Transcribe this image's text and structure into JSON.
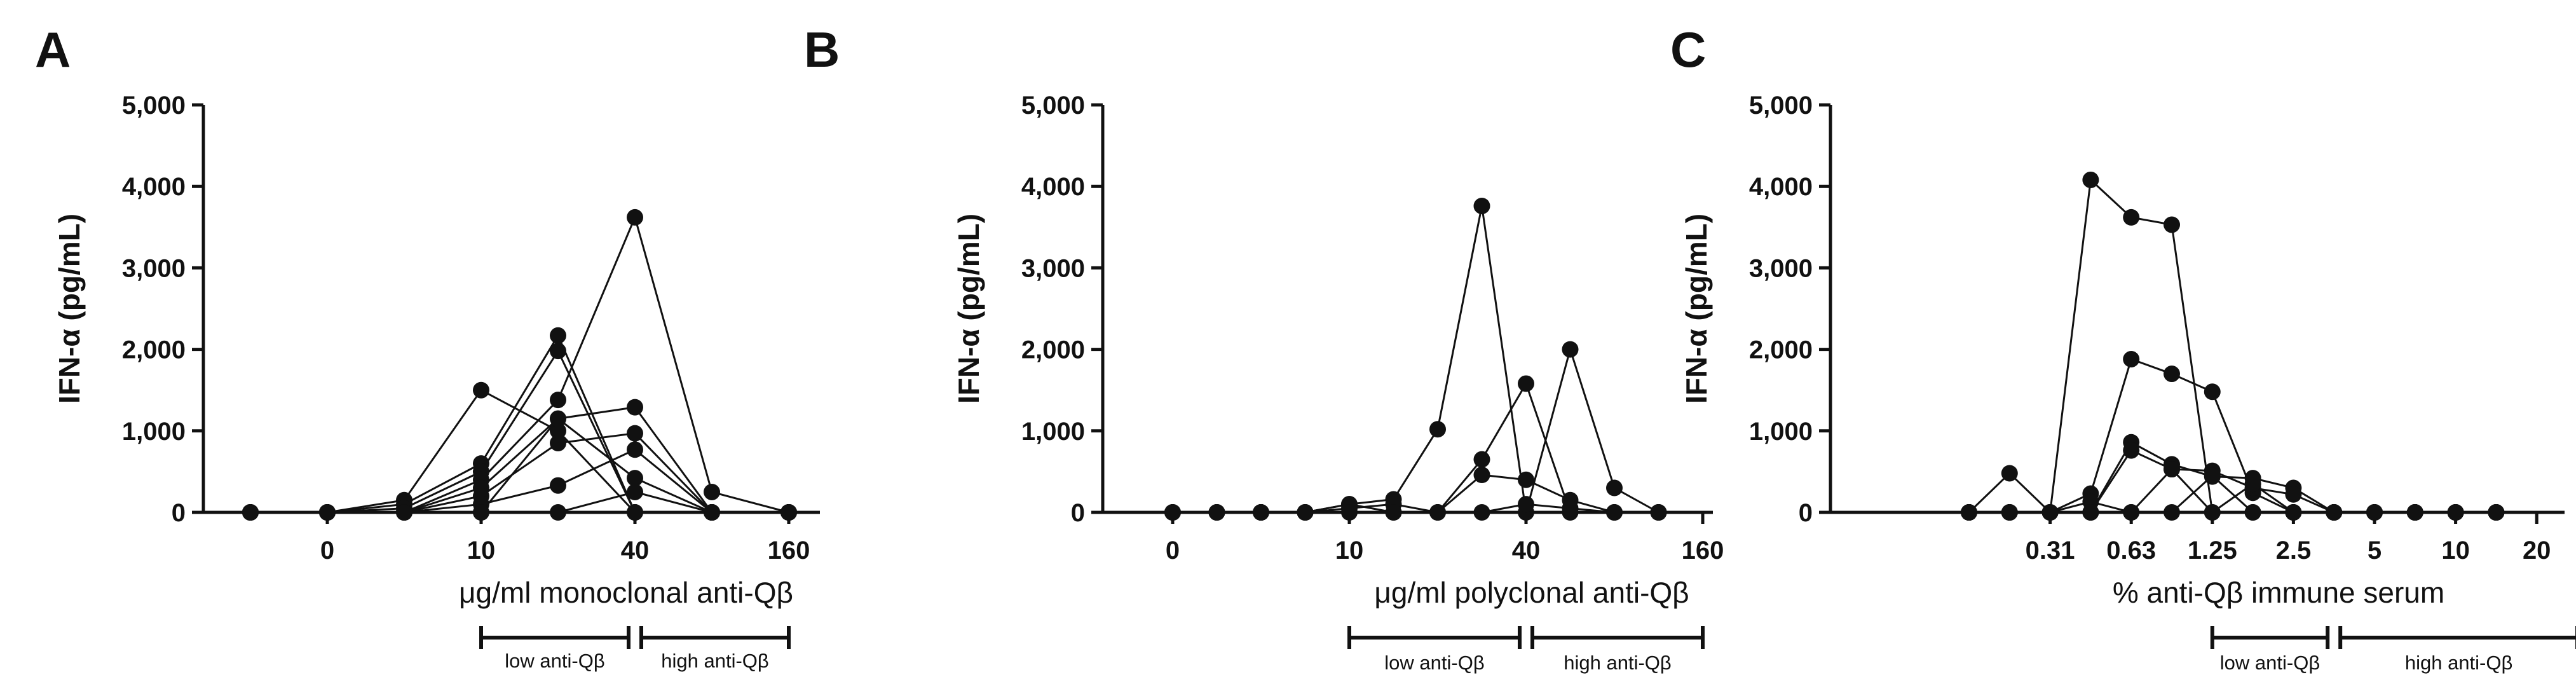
{
  "chart_data": [
    {
      "type": "line",
      "panel_label": "A",
      "ylabel": "IFN-α (pg/mL)",
      "xlabel": "μg/ml monoclonal anti-Qβ",
      "ylim": [
        0,
        5000
      ],
      "yticks": [
        "0",
        "1,000",
        "2,000",
        "3,000",
        "4,000",
        "5,000"
      ],
      "x": [
        -1,
        0,
        1,
        2,
        3,
        4,
        5,
        6
      ],
      "xticks": [
        {
          "x": 0,
          "label": "0"
        },
        {
          "x": 2,
          "label": "10"
        },
        {
          "x": 4,
          "label": "40"
        },
        {
          "x": 6,
          "label": "160"
        }
      ],
      "series": [
        {
          "values": [
            0,
            0,
            150,
            1500,
            1000,
            0,
            0,
            0
          ]
        },
        {
          "values": [
            0,
            0,
            100,
            600,
            2170,
            0,
            0,
            0
          ]
        },
        {
          "values": [
            0,
            0,
            50,
            500,
            1980,
            0,
            0,
            0
          ]
        },
        {
          "values": [
            0,
            0,
            0,
            400,
            1380,
            3620,
            250,
            0
          ]
        },
        {
          "values": [
            0,
            0,
            0,
            300,
            1150,
            1290,
            0,
            0
          ]
        },
        {
          "values": [
            0,
            0,
            0,
            200,
            850,
            970,
            0,
            0
          ]
        },
        {
          "values": [
            0,
            0,
            0,
            100,
            330,
            770,
            0,
            0
          ]
        },
        {
          "values": [
            0,
            0,
            0,
            0,
            1150,
            420,
            0,
            0
          ]
        },
        {
          "values": [
            0,
            0,
            0,
            0,
            0,
            250,
            0,
            0
          ]
        }
      ],
      "brackets": [
        {
          "label": "low anti-Qβ",
          "from": 2,
          "to": 4
        },
        {
          "label": "high anti-Qβ",
          "from": 4,
          "to": 6
        }
      ]
    },
    {
      "type": "line",
      "panel_label": "B",
      "ylabel": "IFN-α (pg/mL)",
      "xlabel": "μg/ml polyclonal anti-Qβ",
      "ylim": [
        0,
        5000
      ],
      "yticks": [
        "0",
        "1,000",
        "2,000",
        "3,000",
        "4,000",
        "5,000"
      ],
      "x": [
        0,
        1,
        2,
        3,
        4,
        5,
        6,
        7,
        8,
        9,
        10,
        11
      ],
      "xticks": [
        {
          "x": 0,
          "label": "0"
        },
        {
          "x": 4,
          "label": "10"
        },
        {
          "x": 8,
          "label": "40"
        },
        {
          "x": 12,
          "label": "160"
        }
      ],
      "series": [
        {
          "values": [
            0,
            0,
            0,
            0,
            100,
            160,
            1020,
            3760,
            0,
            2000,
            300,
            0
          ]
        },
        {
          "values": [
            0,
            0,
            0,
            0,
            50,
            100,
            0,
            650,
            1580,
            0,
            0,
            0
          ]
        },
        {
          "values": [
            0,
            0,
            0,
            0,
            100,
            0,
            0,
            460,
            400,
            150,
            0,
            0
          ]
        },
        {
          "values": [
            0,
            0,
            0,
            0,
            0,
            0,
            0,
            0,
            100,
            50,
            0,
            0
          ]
        }
      ],
      "brackets": [
        {
          "label": "low anti-Qβ",
          "from": 4,
          "to": 8
        },
        {
          "label": "high anti-Qβ",
          "from": 8,
          "to": 12
        }
      ]
    },
    {
      "type": "line",
      "panel_label": "C",
      "ylabel": "IFN-α (pg/mL)",
      "xlabel": "% anti-Qβ immune serum",
      "ylim": [
        0,
        5000
      ],
      "yticks": [
        "0",
        "1,000",
        "2,000",
        "3,000",
        "4,000",
        "5,000"
      ],
      "x": [
        0,
        1,
        2,
        3,
        4,
        5,
        6,
        7,
        8,
        9,
        10,
        11,
        12,
        13
      ],
      "xticks": [
        {
          "x": 2,
          "label": "0.31"
        },
        {
          "x": 4,
          "label": "0.63"
        },
        {
          "x": 6,
          "label": "1.25"
        },
        {
          "x": 8,
          "label": "2.5"
        },
        {
          "x": 10,
          "label": "5"
        },
        {
          "x": 12,
          "label": "10"
        },
        {
          "x": 14,
          "label": "20"
        }
      ],
      "series": [
        {
          "values": [
            0,
            480,
            0,
            4080,
            3620,
            3530,
            0,
            0,
            0,
            0,
            0,
            0,
            0,
            0
          ]
        },
        {
          "values": [
            0,
            0,
            0,
            230,
            1880,
            1700,
            1480,
            240,
            0,
            0,
            0,
            0,
            0,
            0
          ]
        },
        {
          "values": [
            0,
            0,
            0,
            0,
            860,
            590,
            440,
            420,
            300,
            0,
            0,
            0,
            0,
            0
          ]
        },
        {
          "values": [
            0,
            0,
            0,
            0,
            760,
            530,
            510,
            300,
            220,
            0,
            0,
            0,
            0,
            0
          ]
        },
        {
          "values": [
            0,
            0,
            0,
            130,
            0,
            530,
            0,
            350,
            0,
            0,
            0,
            0,
            0,
            0
          ]
        },
        {
          "values": [
            0,
            0,
            0,
            0,
            0,
            0,
            450,
            0,
            0,
            0,
            0,
            0,
            0,
            0
          ]
        }
      ],
      "brackets": [
        {
          "label": "low anti-Qβ",
          "from": 6,
          "to": 9
        },
        {
          "label": "high anti-Qβ",
          "from": 9,
          "to": 15
        }
      ]
    }
  ]
}
